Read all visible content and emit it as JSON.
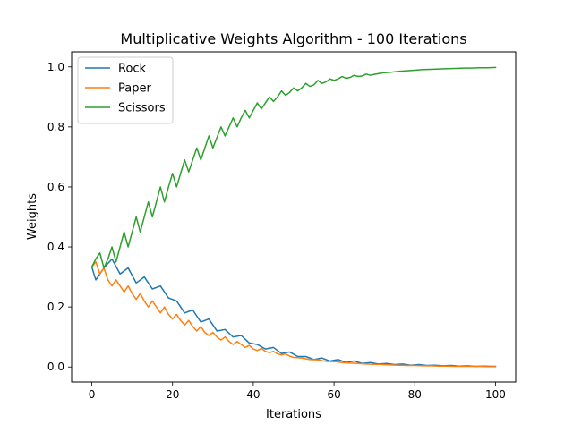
{
  "chart_data": {
    "type": "line",
    "title": "Multiplicative Weights Algorithm - 100 Iterations",
    "xlabel": "Iterations",
    "ylabel": "Weights",
    "xlim": [
      -5,
      105
    ],
    "ylim": [
      -0.05,
      1.05
    ],
    "xticks": [
      0,
      20,
      40,
      60,
      80,
      100
    ],
    "yticks": [
      0.0,
      0.2,
      0.4,
      0.6,
      0.8,
      1.0
    ],
    "xtick_labels": [
      "0",
      "20",
      "40",
      "60",
      "80",
      "100"
    ],
    "ytick_labels": [
      "0.0",
      "0.2",
      "0.4",
      "0.6",
      "0.8",
      "1.0"
    ],
    "grid": false,
    "legend_position": "upper-left",
    "series": [
      {
        "name": "Rock",
        "color": "#1f77b4",
        "x": [
          0,
          1,
          3,
          5,
          7,
          9,
          11,
          13,
          15,
          17,
          19,
          21,
          23,
          25,
          27,
          29,
          31,
          33,
          35,
          37,
          39,
          41,
          43,
          45,
          47,
          49,
          51,
          53,
          55,
          57,
          59,
          61,
          63,
          65,
          67,
          69,
          71,
          73,
          75,
          77,
          79,
          81,
          83,
          85,
          87,
          89,
          91,
          93,
          95,
          97,
          99,
          100
        ],
        "y": [
          0.333,
          0.29,
          0.33,
          0.36,
          0.31,
          0.33,
          0.28,
          0.3,
          0.26,
          0.27,
          0.23,
          0.22,
          0.18,
          0.19,
          0.15,
          0.16,
          0.12,
          0.125,
          0.1,
          0.105,
          0.08,
          0.075,
          0.06,
          0.065,
          0.045,
          0.05,
          0.035,
          0.035,
          0.025,
          0.03,
          0.02,
          0.025,
          0.015,
          0.02,
          0.012,
          0.015,
          0.01,
          0.012,
          0.008,
          0.01,
          0.006,
          0.008,
          0.005,
          0.006,
          0.004,
          0.005,
          0.003,
          0.004,
          0.002,
          0.003,
          0.002,
          0.002
        ]
      },
      {
        "name": "Paper",
        "color": "#ff7f0e",
        "x": [
          0,
          1,
          2,
          3,
          4,
          5,
          6,
          7,
          8,
          9,
          10,
          11,
          12,
          13,
          14,
          15,
          16,
          17,
          18,
          19,
          20,
          21,
          22,
          23,
          24,
          25,
          26,
          27,
          28,
          29,
          30,
          31,
          32,
          33,
          34,
          35,
          36,
          37,
          38,
          39,
          40,
          41,
          42,
          43,
          44,
          45,
          46,
          47,
          48,
          49,
          50,
          52,
          54,
          56,
          58,
          60,
          62,
          64,
          66,
          68,
          70,
          72,
          74,
          76,
          78,
          80,
          82,
          84,
          86,
          88,
          90,
          92,
          94,
          96,
          98,
          100
        ],
        "y": [
          0.333,
          0.35,
          0.31,
          0.33,
          0.29,
          0.27,
          0.29,
          0.27,
          0.25,
          0.27,
          0.245,
          0.225,
          0.245,
          0.22,
          0.2,
          0.22,
          0.2,
          0.18,
          0.2,
          0.175,
          0.16,
          0.175,
          0.155,
          0.14,
          0.155,
          0.135,
          0.12,
          0.135,
          0.115,
          0.105,
          0.115,
          0.1,
          0.09,
          0.1,
          0.085,
          0.075,
          0.085,
          0.075,
          0.065,
          0.072,
          0.06,
          0.055,
          0.062,
          0.052,
          0.048,
          0.052,
          0.044,
          0.04,
          0.044,
          0.036,
          0.032,
          0.03,
          0.025,
          0.024,
          0.019,
          0.018,
          0.015,
          0.013,
          0.012,
          0.01,
          0.009,
          0.008,
          0.007,
          0.006,
          0.005,
          0.005,
          0.004,
          0.004,
          0.003,
          0.003,
          0.002,
          0.002,
          0.002,
          0.002,
          0.001,
          0.001
        ]
      },
      {
        "name": "Scissors",
        "color": "#2ca02c",
        "x": [
          0,
          1,
          2,
          3,
          4,
          5,
          6,
          7,
          8,
          9,
          10,
          11,
          12,
          13,
          14,
          15,
          16,
          17,
          18,
          19,
          20,
          21,
          22,
          23,
          24,
          25,
          26,
          27,
          28,
          29,
          30,
          31,
          32,
          33,
          34,
          35,
          36,
          37,
          38,
          39,
          40,
          41,
          42,
          43,
          44,
          45,
          46,
          47,
          48,
          49,
          50,
          51,
          52,
          53,
          54,
          55,
          56,
          57,
          58,
          59,
          60,
          61,
          62,
          63,
          64,
          65,
          66,
          67,
          68,
          69,
          70,
          72,
          74,
          76,
          78,
          80,
          82,
          84,
          86,
          88,
          90,
          92,
          94,
          96,
          98,
          100
        ],
        "y": [
          0.333,
          0.36,
          0.38,
          0.33,
          0.36,
          0.4,
          0.35,
          0.4,
          0.45,
          0.4,
          0.45,
          0.5,
          0.45,
          0.5,
          0.55,
          0.5,
          0.55,
          0.6,
          0.55,
          0.6,
          0.645,
          0.6,
          0.645,
          0.69,
          0.65,
          0.69,
          0.73,
          0.69,
          0.73,
          0.77,
          0.73,
          0.765,
          0.8,
          0.77,
          0.8,
          0.83,
          0.8,
          0.83,
          0.855,
          0.83,
          0.855,
          0.88,
          0.86,
          0.88,
          0.9,
          0.885,
          0.9,
          0.92,
          0.905,
          0.915,
          0.93,
          0.92,
          0.93,
          0.945,
          0.935,
          0.94,
          0.955,
          0.945,
          0.95,
          0.96,
          0.955,
          0.96,
          0.968,
          0.962,
          0.965,
          0.972,
          0.968,
          0.97,
          0.976,
          0.972,
          0.975,
          0.98,
          0.982,
          0.985,
          0.987,
          0.989,
          0.991,
          0.992,
          0.993,
          0.994,
          0.995,
          0.996,
          0.996,
          0.997,
          0.997,
          0.998
        ]
      }
    ]
  }
}
